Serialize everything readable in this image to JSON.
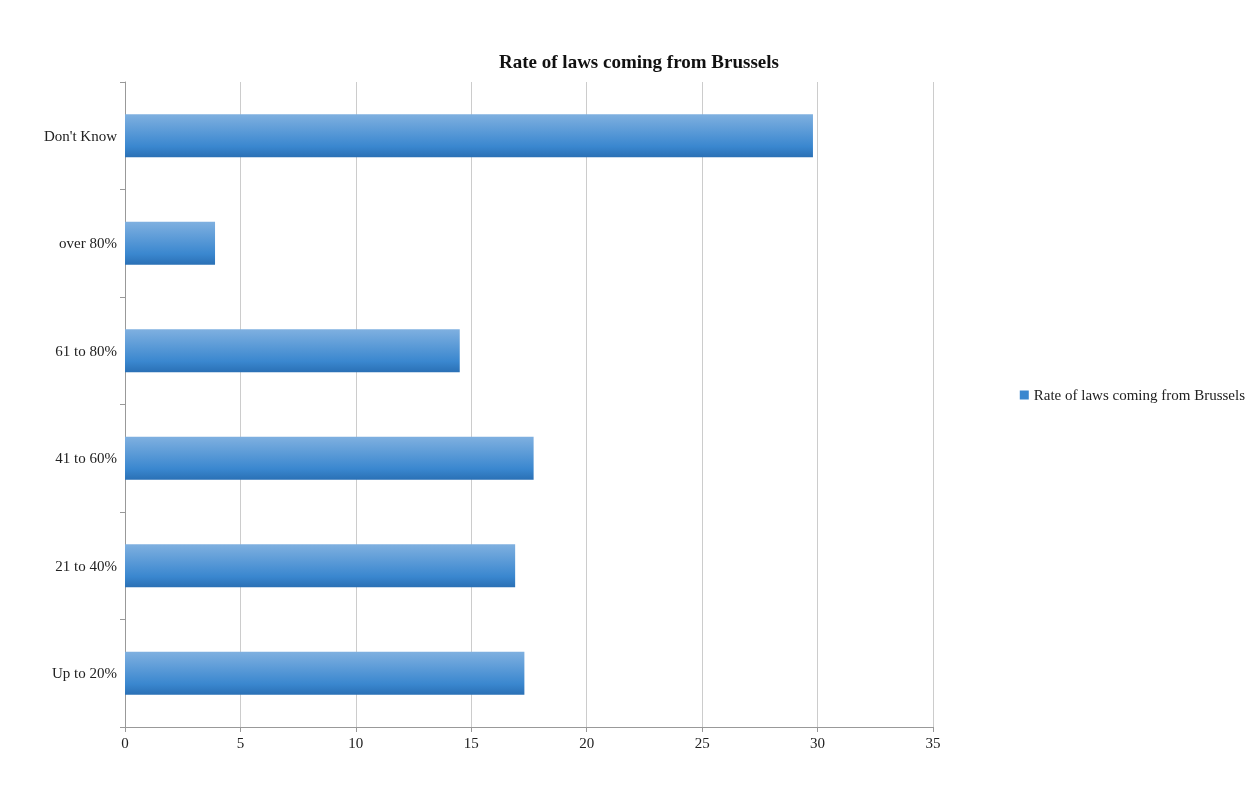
{
  "chart_data": {
    "type": "bar",
    "orientation": "horizontal",
    "title": "Rate of laws coming from Brussels",
    "categories": [
      "Don't Know",
      "over 80%",
      "61 to 80%",
      "41 to 60%",
      "21 to 40%",
      "Up to 20%"
    ],
    "series": [
      {
        "name": "Rate of laws coming from Brussels",
        "color": "#3a87cf",
        "values": [
          29.8,
          3.9,
          14.5,
          17.7,
          16.9,
          17.3
        ]
      }
    ],
    "xlim": [
      0,
      35
    ],
    "xticks": [
      0,
      5,
      10,
      15,
      20,
      25,
      30,
      35
    ],
    "grid": "x",
    "legend": "right"
  }
}
